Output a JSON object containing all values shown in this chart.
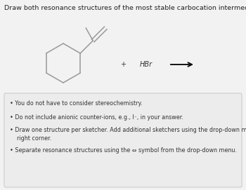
{
  "title": "Draw both resonance structures of the most stable carbocation intermediate in the reaction shown.",
  "title_fontsize": 6.8,
  "title_color": "#222222",
  "bg_color": "#f2f2f2",
  "bullet_box_bg": "#ececec",
  "bullet_box_border": "#cccccc",
  "plus_text": "+",
  "hbr_text": "HBr",
  "molecule_color": "#999999",
  "text_color": "#333333",
  "arrow_color": "#111111",
  "bullet_fontsize": 5.8,
  "small_fontsize": 7.0,
  "bullet_points": [
    "You do not have to consider stereochemistry.",
    "Do not include anionic counter-ions, e.g., I⁻, in your answer.",
    "Draw one structure per sketcher. Add additional sketchers using the drop-down menu in the bottom\n    right corner.",
    "Separate resonance structures using the ⇔ symbol from the drop-down menu."
  ]
}
